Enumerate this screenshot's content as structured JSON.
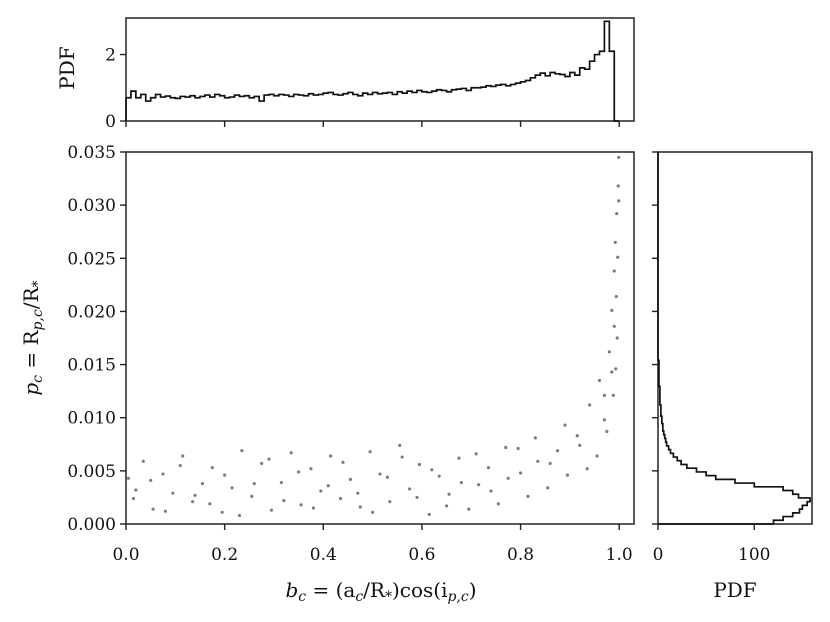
{
  "chart_data": [
    {
      "type": "scatter",
      "id": "joint",
      "xlabel_parts": [
        "b",
        "c",
        " = (a",
        "c",
        "/R",
        "*",
        ")cos(i",
        "p,c",
        ")"
      ],
      "ylabel_parts": [
        "p",
        "c",
        " = R",
        "p,c",
        "/R",
        "*"
      ],
      "xlim": [
        0.0,
        1.03
      ],
      "ylim": [
        0.0,
        0.035
      ],
      "xticks": [
        0.0,
        0.2,
        0.4,
        0.6,
        0.8,
        1.0
      ],
      "xtick_labels": [
        "0.0",
        "0.2",
        "0.4",
        "0.6",
        "0.8",
        "1.0"
      ],
      "yticks": [
        0.0,
        0.005,
        0.01,
        0.015,
        0.02,
        0.025,
        0.03,
        0.035
      ],
      "ytick_labels": [
        "0.000",
        "0.005",
        "0.010",
        "0.015",
        "0.020",
        "0.025",
        "0.030",
        "0.035"
      ],
      "marker_color": "#111111",
      "points": [
        [
          0.02,
          0.0032
        ],
        [
          0.05,
          0.0041
        ],
        [
          0.08,
          0.0012
        ],
        [
          0.11,
          0.0055
        ],
        [
          0.14,
          0.0027
        ],
        [
          0.17,
          0.0019
        ],
        [
          0.2,
          0.0046
        ],
        [
          0.23,
          0.0008
        ],
        [
          0.26,
          0.0038
        ],
        [
          0.29,
          0.0061
        ],
        [
          0.32,
          0.0022
        ],
        [
          0.35,
          0.0049
        ],
        [
          0.38,
          0.0015
        ],
        [
          0.41,
          0.0036
        ],
        [
          0.44,
          0.0058
        ],
        [
          0.47,
          0.0029
        ],
        [
          0.5,
          0.0011
        ],
        [
          0.53,
          0.0044
        ],
        [
          0.56,
          0.0063
        ],
        [
          0.59,
          0.0025
        ],
        [
          0.62,
          0.0051
        ],
        [
          0.65,
          0.0017
        ],
        [
          0.68,
          0.0039
        ],
        [
          0.71,
          0.0066
        ],
        [
          0.74,
          0.0031
        ],
        [
          0.77,
          0.0072
        ],
        [
          0.8,
          0.0048
        ],
        [
          0.83,
          0.0081
        ],
        [
          0.86,
          0.0057
        ],
        [
          0.89,
          0.0093
        ],
        [
          0.92,
          0.0074
        ],
        [
          0.94,
          0.0112
        ],
        [
          0.96,
          0.0135
        ],
        [
          0.97,
          0.0098
        ],
        [
          0.98,
          0.0162
        ],
        [
          0.985,
          0.0201
        ],
        [
          0.99,
          0.0238
        ],
        [
          0.992,
          0.0265
        ],
        [
          0.995,
          0.0292
        ],
        [
          0.998,
          0.0318
        ],
        [
          0.999,
          0.0345
        ],
        [
          0.996,
          0.0175
        ],
        [
          0.993,
          0.0146
        ],
        [
          0.988,
          0.0121
        ],
        [
          0.975,
          0.0087
        ],
        [
          0.955,
          0.0064
        ],
        [
          0.935,
          0.0052
        ],
        [
          0.915,
          0.0083
        ],
        [
          0.895,
          0.0046
        ],
        [
          0.875,
          0.0069
        ],
        [
          0.855,
          0.0034
        ],
        [
          0.835,
          0.0059
        ],
        [
          0.815,
          0.0026
        ],
        [
          0.795,
          0.0071
        ],
        [
          0.775,
          0.0043
        ],
        [
          0.755,
          0.0019
        ],
        [
          0.735,
          0.0053
        ],
        [
          0.715,
          0.0037
        ],
        [
          0.695,
          0.0014
        ],
        [
          0.675,
          0.0062
        ],
        [
          0.655,
          0.0028
        ],
        [
          0.635,
          0.0045
        ],
        [
          0.615,
          0.0009
        ],
        [
          0.595,
          0.0056
        ],
        [
          0.575,
          0.0033
        ],
        [
          0.555,
          0.0074
        ],
        [
          0.535,
          0.0021
        ],
        [
          0.515,
          0.0047
        ],
        [
          0.495,
          0.0068
        ],
        [
          0.475,
          0.0016
        ],
        [
          0.455,
          0.0042
        ],
        [
          0.435,
          0.0024
        ],
        [
          0.415,
          0.0064
        ],
        [
          0.395,
          0.0031
        ],
        [
          0.375,
          0.0052
        ],
        [
          0.355,
          0.0018
        ],
        [
          0.335,
          0.0067
        ],
        [
          0.315,
          0.0039
        ],
        [
          0.295,
          0.0013
        ],
        [
          0.275,
          0.0057
        ],
        [
          0.255,
          0.0026
        ],
        [
          0.235,
          0.0069
        ],
        [
          0.215,
          0.0034
        ],
        [
          0.195,
          0.0011
        ],
        [
          0.175,
          0.0053
        ],
        [
          0.155,
          0.0038
        ],
        [
          0.135,
          0.0021
        ],
        [
          0.115,
          0.0064
        ],
        [
          0.095,
          0.0029
        ],
        [
          0.075,
          0.0047
        ],
        [
          0.055,
          0.0014
        ],
        [
          0.035,
          0.0059
        ],
        [
          0.015,
          0.0024
        ],
        [
          0.005,
          0.0043
        ],
        [
          0.97,
          0.0121
        ],
        [
          0.985,
          0.0143
        ],
        [
          0.99,
          0.0186
        ],
        [
          0.994,
          0.0214
        ],
        [
          0.997,
          0.0251
        ],
        [
          0.999,
          0.0304
        ]
      ]
    },
    {
      "type": "histogram",
      "id": "top-marginal",
      "ylabel": "PDF",
      "xlim": [
        0.0,
        1.03
      ],
      "ylim": [
        0,
        3.1
      ],
      "yticks": [
        0,
        2
      ],
      "ytick_labels": [
        "0",
        "2"
      ],
      "bin_edges_start": 0.0,
      "bin_width": 0.01,
      "values": [
        0.7,
        0.9,
        0.7,
        0.8,
        0.6,
        0.7,
        0.8,
        0.72,
        0.75,
        0.7,
        0.68,
        0.74,
        0.72,
        0.76,
        0.7,
        0.74,
        0.78,
        0.72,
        0.8,
        0.76,
        0.7,
        0.72,
        0.78,
        0.74,
        0.76,
        0.7,
        0.74,
        0.6,
        0.78,
        0.8,
        0.76,
        0.8,
        0.78,
        0.74,
        0.8,
        0.78,
        0.76,
        0.82,
        0.78,
        0.8,
        0.84,
        0.86,
        0.8,
        0.78,
        0.82,
        0.86,
        0.8,
        0.76,
        0.84,
        0.8,
        0.86,
        0.82,
        0.84,
        0.86,
        0.8,
        0.88,
        0.84,
        0.9,
        0.86,
        0.92,
        0.88,
        0.86,
        0.9,
        0.94,
        0.92,
        0.88,
        0.94,
        0.96,
        0.98,
        0.92,
        1.0,
        1.0,
        1.02,
        1.06,
        1.04,
        1.08,
        1.1,
        1.06,
        1.1,
        1.14,
        1.18,
        1.22,
        1.3,
        1.38,
        1.44,
        1.36,
        1.46,
        1.42,
        1.4,
        1.34,
        1.46,
        1.38,
        1.6,
        1.56,
        1.8,
        2.0,
        2.1,
        3.0,
        2.1,
        0.0
      ]
    },
    {
      "type": "histogram",
      "id": "right-marginal",
      "orientation": "horizontal",
      "xlabel": "PDF",
      "xlim": [
        0,
        160
      ],
      "xticks": [
        0,
        100
      ],
      "xtick_labels": [
        "0",
        "100"
      ],
      "ylim": [
        0.0,
        0.035
      ],
      "bin_edges_start": 0.0,
      "bin_width": 0.00035,
      "values": [
        120,
        130,
        140,
        147,
        150,
        155,
        158,
        146,
        140,
        130,
        100,
        80,
        60,
        50,
        40,
        30,
        24,
        20,
        16,
        13,
        11,
        9,
        8,
        7,
        6,
        5,
        5,
        4,
        4,
        3,
        3,
        3,
        2,
        2,
        2,
        2,
        2,
        1,
        1,
        1,
        1,
        1,
        1,
        1,
        0,
        0,
        0,
        0,
        0,
        0,
        0,
        0,
        0,
        0,
        0,
        0,
        0,
        0,
        0,
        0,
        0,
        0,
        0,
        0,
        0,
        0,
        0,
        0,
        0,
        0,
        0,
        0,
        0,
        0,
        0,
        0,
        0,
        0,
        0,
        0,
        0,
        0,
        0,
        0,
        0,
        0,
        0,
        0,
        0,
        0,
        0,
        0,
        0,
        0,
        0,
        0,
        0,
        0,
        0,
        0
      ]
    }
  ]
}
